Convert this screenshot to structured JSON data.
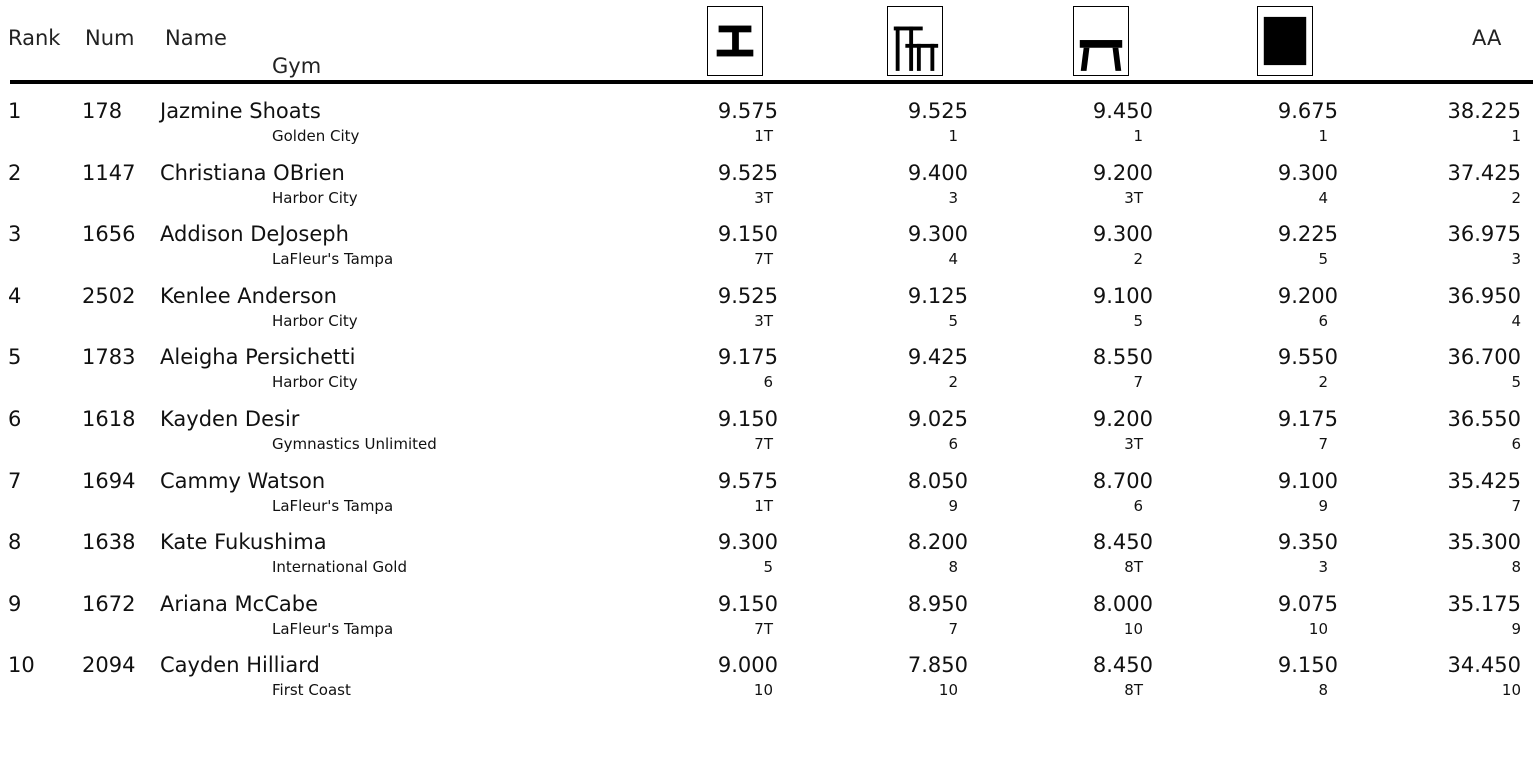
{
  "header": {
    "rank": "Rank",
    "num": "Num",
    "name": "Name",
    "gym": "Gym",
    "aa": "AA",
    "events": [
      {
        "icon": "vault-icon"
      },
      {
        "icon": "uneven-bars-icon"
      },
      {
        "icon": "balance-beam-icon"
      },
      {
        "icon": "floor-exercise-icon"
      }
    ]
  },
  "rows": [
    {
      "rank": "1",
      "num": "178",
      "name": "Jazmine Shoats",
      "gym": "Golden City",
      "scores": [
        "9.575",
        "9.525",
        "9.450",
        "9.675",
        "38.225"
      ],
      "places": [
        "1T",
        "1",
        "1",
        "1",
        "1"
      ]
    },
    {
      "rank": "2",
      "num": "1147",
      "name": "Christiana OBrien",
      "gym": "Harbor City",
      "scores": [
        "9.525",
        "9.400",
        "9.200",
        "9.300",
        "37.425"
      ],
      "places": [
        "3T",
        "3",
        "3T",
        "4",
        "2"
      ]
    },
    {
      "rank": "3",
      "num": "1656",
      "name": "Addison DeJoseph",
      "gym": "LaFleur's Tampa",
      "scores": [
        "9.150",
        "9.300",
        "9.300",
        "9.225",
        "36.975"
      ],
      "places": [
        "7T",
        "4",
        "2",
        "5",
        "3"
      ]
    },
    {
      "rank": "4",
      "num": "2502",
      "name": "Kenlee Anderson",
      "gym": "Harbor City",
      "scores": [
        "9.525",
        "9.125",
        "9.100",
        "9.200",
        "36.950"
      ],
      "places": [
        "3T",
        "5",
        "5",
        "6",
        "4"
      ]
    },
    {
      "rank": "5",
      "num": "1783",
      "name": "Aleigha Persichetti",
      "gym": "Harbor City",
      "scores": [
        "9.175",
        "9.425",
        "8.550",
        "9.550",
        "36.700"
      ],
      "places": [
        "6",
        "2",
        "7",
        "2",
        "5"
      ]
    },
    {
      "rank": "6",
      "num": "1618",
      "name": "Kayden Desir",
      "gym": "Gymnastics Unlimited",
      "scores": [
        "9.150",
        "9.025",
        "9.200",
        "9.175",
        "36.550"
      ],
      "places": [
        "7T",
        "6",
        "3T",
        "7",
        "6"
      ]
    },
    {
      "rank": "7",
      "num": "1694",
      "name": "Cammy Watson",
      "gym": "LaFleur's Tampa",
      "scores": [
        "9.575",
        "8.050",
        "8.700",
        "9.100",
        "35.425"
      ],
      "places": [
        "1T",
        "9",
        "6",
        "9",
        "7"
      ]
    },
    {
      "rank": "8",
      "num": "1638",
      "name": "Kate Fukushima",
      "gym": "International Gold",
      "scores": [
        "9.300",
        "8.200",
        "8.450",
        "9.350",
        "35.300"
      ],
      "places": [
        "5",
        "8",
        "8T",
        "3",
        "8"
      ]
    },
    {
      "rank": "9",
      "num": "1672",
      "name": "Ariana McCabe",
      "gym": "LaFleur's Tampa",
      "scores": [
        "9.150",
        "8.950",
        "8.000",
        "9.075",
        "35.175"
      ],
      "places": [
        "7T",
        "7",
        "10",
        "10",
        "9"
      ]
    },
    {
      "rank": "10",
      "num": "2094",
      "name": "Cayden Hilliard",
      "gym": "First Coast",
      "scores": [
        "9.000",
        "7.850",
        "8.450",
        "9.150",
        "34.450"
      ],
      "places": [
        "10",
        "10",
        "8T",
        "8",
        "10"
      ]
    }
  ]
}
